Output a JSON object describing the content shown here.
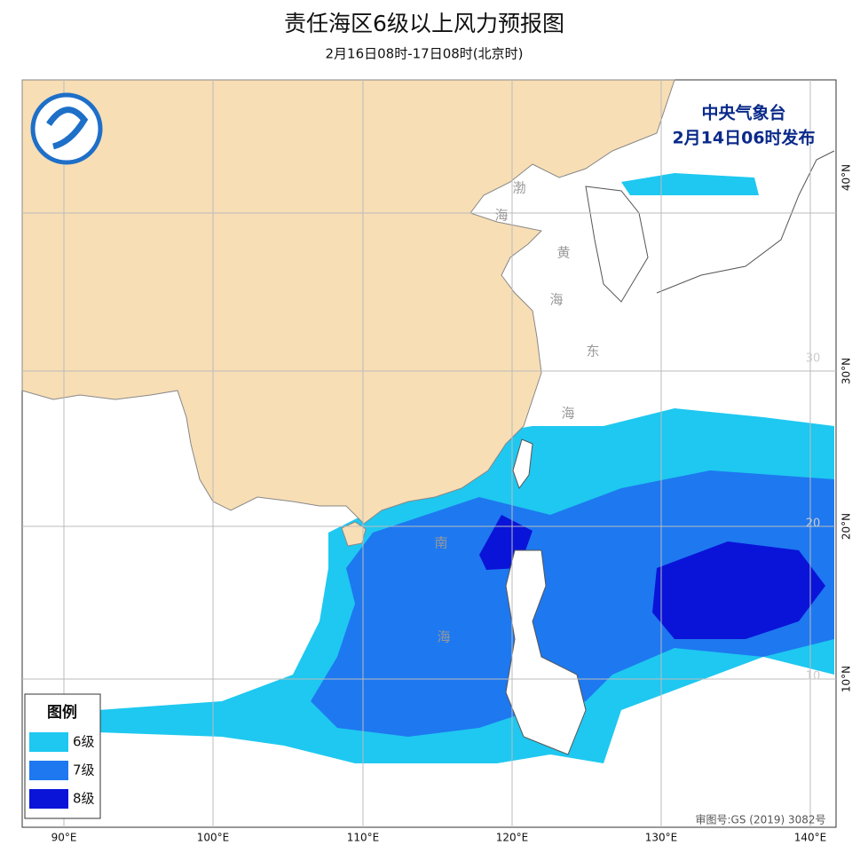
{
  "header": {
    "title": "责任海区6级以上风力预报图",
    "subtitle": "2月16日08时-17日08时(北京时)"
  },
  "issuer": {
    "name": "中央气象台",
    "time": "2月14日06时发布"
  },
  "legend": {
    "title": "图例",
    "items": [
      "6级",
      "7级",
      "8级"
    ]
  },
  "sea_labels": [
    "渤",
    "海",
    "黄",
    "海",
    "东",
    "海",
    "南",
    "海"
  ],
  "lon_labels": [
    "90°E",
    "100°E",
    "110°E",
    "120°E",
    "130°E",
    "140°E"
  ],
  "lat_labels": [
    "40°N",
    "30°N",
    "20°N",
    "10°N"
  ],
  "inner_lat_labels": [
    "30",
    "20",
    "10"
  ],
  "footer": "审图号:GS (2019) 3082号"
}
